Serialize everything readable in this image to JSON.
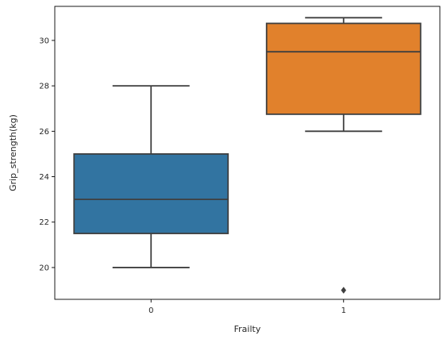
{
  "chart_data": {
    "type": "box",
    "title": "",
    "xlabel": "Frailty",
    "ylabel": "Grip_strength(kg)",
    "categories": [
      "0",
      "1"
    ],
    "ylim": [
      18.6,
      31.5
    ],
    "yticks": [
      20,
      22,
      24,
      26,
      28,
      30
    ],
    "grid": false,
    "legend": "none",
    "boxes": [
      {
        "category": "0",
        "whisker_low": 20,
        "q1": 21.5,
        "median": 23,
        "q3": 25,
        "whisker_high": 28,
        "outliers": [],
        "color": "#3274a1"
      },
      {
        "category": "1",
        "whisker_low": 26,
        "q1": 26.75,
        "median": 29.5,
        "q3": 30.75,
        "whisker_high": 31,
        "outliers": [
          19
        ],
        "color": "#e1812c"
      }
    ],
    "line_color": "#3f3f3f"
  }
}
